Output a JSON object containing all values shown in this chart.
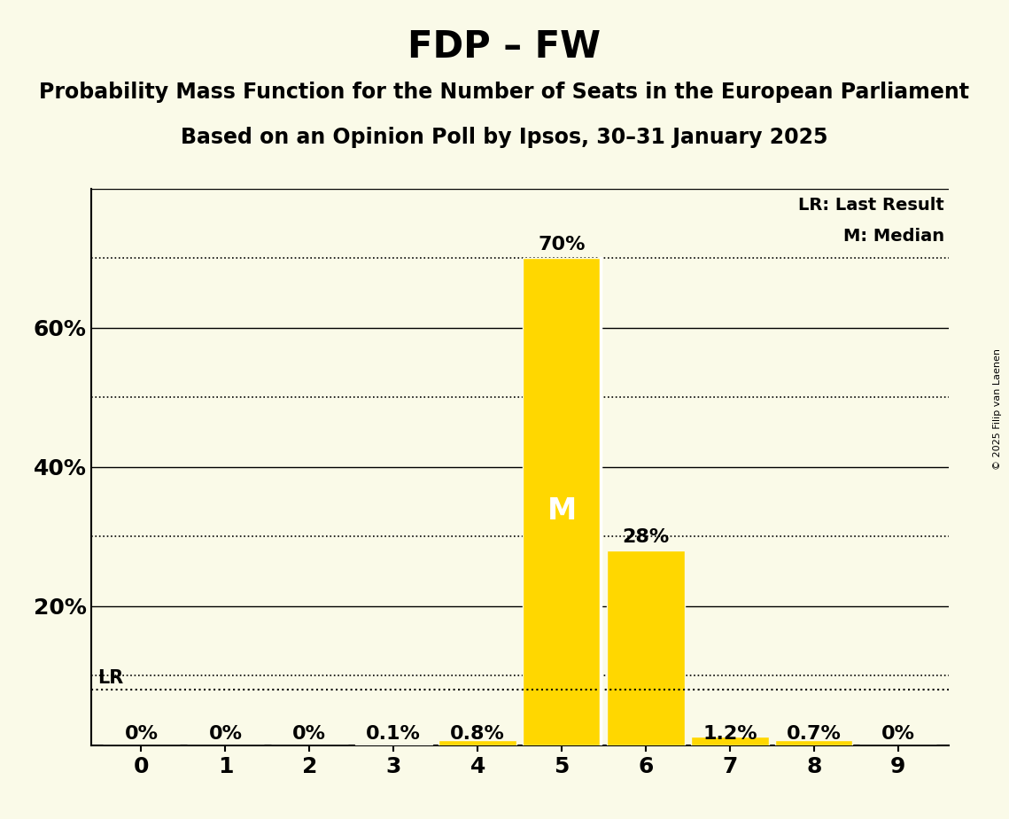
{
  "title": "FDP – FW",
  "subtitle": "Probability Mass Function for the Number of Seats in the European Parliament",
  "subsubtitle": "Based on an Opinion Poll by Ipsos, 30–31 January 2025",
  "copyright": "© 2025 Filip van Laenen",
  "seats": [
    0,
    1,
    2,
    3,
    4,
    5,
    6,
    7,
    8,
    9
  ],
  "probabilities": [
    0.0,
    0.0,
    0.0,
    0.001,
    0.008,
    0.7,
    0.28,
    0.012,
    0.007,
    0.0
  ],
  "bar_labels": [
    "0%",
    "0%",
    "0%",
    "0.1%",
    "0.8%",
    "70%",
    "28%",
    "1.2%",
    "0.7%",
    "0%"
  ],
  "bar_color": "#FFD700",
  "background_color": "#FAFAE8",
  "median_seat": 5,
  "lr_value": 0.08,
  "lr_label": "LR",
  "median_label": "M",
  "legend_lr": "LR: Last Result",
  "legend_m": "M: Median",
  "ylim": [
    0.0,
    0.8
  ],
  "solid_yticks": [
    0.0,
    0.2,
    0.4,
    0.6,
    0.8
  ],
  "solid_ytick_labels": [
    "",
    "20%",
    "40%",
    "60%",
    ""
  ],
  "dotted_yticks": [
    0.1,
    0.3,
    0.5,
    0.7
  ],
  "title_fontsize": 30,
  "subtitle_fontsize": 17,
  "subsubtitle_fontsize": 17,
  "label_fontsize": 15,
  "tick_fontsize": 18,
  "bar_label_fontsize": 16,
  "legend_fontsize": 14,
  "copyright_fontsize": 8
}
